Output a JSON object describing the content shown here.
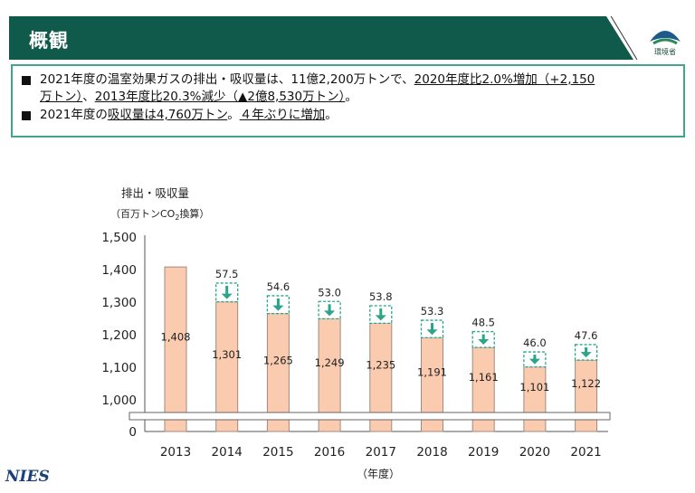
{
  "header": {
    "title": "概観",
    "logo_text": "環境省"
  },
  "summary": {
    "line1": {
      "pre": "2021年度の温室効果ガスの排出・吸収量は、11億2,200万トンで、",
      "u1": "2020年度比2.0%増加（+2,150",
      "u2": "万トン）",
      "mid": "、",
      "u3": "2013年度比20.3%減少（▲2億8,530万トン）",
      "post": "。"
    },
    "line2": {
      "pre": "2021年度の",
      "u1": "吸収量は4,760万トン",
      "mid": "。",
      "u2": "４年ぶりに増加",
      "post": "。"
    }
  },
  "colors": {
    "header": "#0f5a4a",
    "bar_fill": "#fbcbb0",
    "bar_stroke": "#a08a7e",
    "arrow": "#2aa58a",
    "box_border": "#3fa58f"
  },
  "chart_data": {
    "type": "bar",
    "ylabel": "排出・吸収量",
    "yunit_prefix": "（百万トンCO",
    "yunit_sub": "2",
    "yunit_suffix": "換算）",
    "xlabel": "（年度）",
    "categories": [
      "2013",
      "2014",
      "2015",
      "2016",
      "2017",
      "2018",
      "2019",
      "2020",
      "2021"
    ],
    "values": [
      1408,
      1301,
      1265,
      1249,
      1235,
      1191,
      1161,
      1101,
      1122
    ],
    "value_labels": [
      "1,408",
      "1,301",
      "1,265",
      "1,249",
      "1,235",
      "1,191",
      "1,161",
      "1,101",
      "1,122"
    ],
    "absorption": [
      null,
      "57.5",
      "54.6",
      "53.0",
      "53.8",
      "53.3",
      "48.5",
      "46.0",
      "47.6"
    ],
    "absorption_values": [
      null,
      57.5,
      54.6,
      53.0,
      53.8,
      53.3,
      48.5,
      46.0,
      47.6
    ],
    "yticks": [
      "1,500",
      "1,400",
      "1,300",
      "1,200",
      "1,100",
      "1,000",
      "0"
    ],
    "ylim": [
      1000,
      1500
    ],
    "axis_break": true,
    "grid": false
  },
  "footer": {
    "logo": "NIES"
  }
}
